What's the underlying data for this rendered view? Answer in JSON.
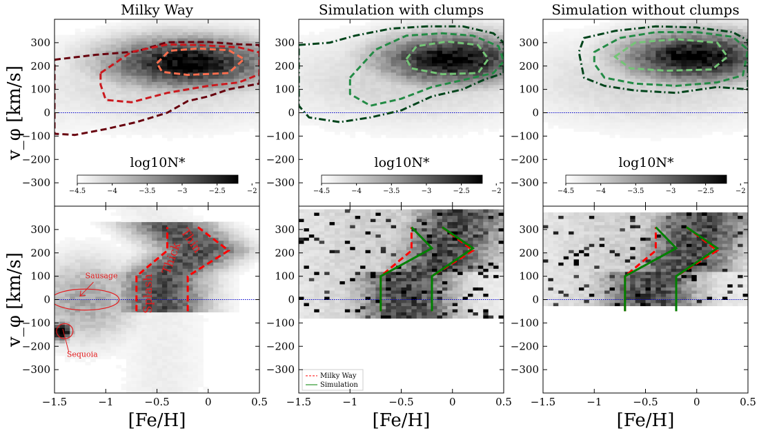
{
  "chart_data": [
    {
      "type": "heatmap",
      "panel": "top-left",
      "title": "Milky Way",
      "xlabel": "",
      "ylabel": "v_φ [km/s]",
      "xlim": [
        -1.5,
        0.5
      ],
      "ylim": [
        -400,
        400
      ],
      "yticks": [
        -300,
        -200,
        -100,
        0,
        100,
        200,
        300
      ],
      "density_peak": {
        "x": -0.2,
        "y": 215
      },
      "hline_y": 0,
      "colorbar": {
        "label": "log10N*",
        "range": [
          -4.5,
          -2.2
        ],
        "ticks": [
          -4.5,
          -4.0,
          -3.5,
          -3.0,
          -2.5,
          -2.0
        ]
      },
      "contours": [
        {
          "name": "outer",
          "color": "#67000d",
          "points": [
            [
              -1.5,
              227
            ],
            [
              -1.1,
              248
            ],
            [
              -0.7,
              262
            ],
            [
              -0.4,
              302
            ],
            [
              0.0,
              303
            ],
            [
              0.3,
              293
            ],
            [
              0.5,
              290
            ],
            [
              0.5,
              125
            ],
            [
              0.2,
              100
            ],
            [
              0.0,
              70
            ],
            [
              -0.2,
              50
            ],
            [
              -0.4,
              0
            ],
            [
              -0.7,
              -40
            ],
            [
              -1.0,
              -70
            ],
            [
              -1.3,
              -95
            ],
            [
              -1.5,
              -90
            ]
          ]
        },
        {
          "name": "middle",
          "color": "#cb181d",
          "points": [
            [
              -1.05,
              170
            ],
            [
              -0.75,
              260
            ],
            [
              -0.4,
              292
            ],
            [
              -0.1,
              290
            ],
            [
              0.3,
              280
            ],
            [
              0.5,
              258
            ],
            [
              0.5,
              165
            ],
            [
              0.3,
              130
            ],
            [
              0.0,
              115
            ],
            [
              -0.4,
              85
            ],
            [
              -0.75,
              45
            ],
            [
              -1.0,
              55
            ],
            [
              -1.05,
              120
            ]
          ]
        },
        {
          "name": "inner",
          "color": "#fc6e4e",
          "points": [
            [
              -0.5,
              212
            ],
            [
              -0.38,
              265
            ],
            [
              -0.1,
              275
            ],
            [
              0.2,
              268
            ],
            [
              0.35,
              230
            ],
            [
              0.2,
              170
            ],
            [
              -0.2,
              162
            ],
            [
              -0.45,
              175
            ],
            [
              -0.5,
              212
            ]
          ]
        }
      ]
    },
    {
      "type": "heatmap",
      "panel": "top-middle",
      "title": "Simulation with clumps",
      "xlim": [
        -1.5,
        0.5
      ],
      "ylim": [
        -400,
        400
      ],
      "yticks": [
        -300,
        -200,
        -100,
        0,
        100,
        200,
        300
      ],
      "density_peak": {
        "x": 0.0,
        "y": 230
      },
      "hline_y": 0,
      "colorbar": {
        "label": "log10N*",
        "range": [
          -4.5,
          -2.2
        ],
        "ticks": [
          -4.5,
          -4.0,
          -3.5,
          -3.0,
          -2.5,
          -2.0
        ]
      },
      "contours": [
        {
          "name": "outer",
          "color": "#00441b",
          "points": [
            [
              -1.5,
              290
            ],
            [
              -1.2,
              300
            ],
            [
              -0.95,
              330
            ],
            [
              -0.6,
              360
            ],
            [
              -0.25,
              370
            ],
            [
              0.1,
              370
            ],
            [
              0.4,
              340
            ],
            [
              0.5,
              300
            ],
            [
              0.5,
              170
            ],
            [
              0.3,
              140
            ],
            [
              0.1,
              100
            ],
            [
              -0.2,
              70
            ],
            [
              -0.5,
              10
            ],
            [
              -0.8,
              -20
            ],
            [
              -1.1,
              -40
            ],
            [
              -1.4,
              -20
            ],
            [
              -1.5,
              30
            ]
          ]
        },
        {
          "name": "middle",
          "color": "#238b45",
          "points": [
            [
              -1.0,
              150
            ],
            [
              -0.75,
              270
            ],
            [
              -0.45,
              330
            ],
            [
              -0.1,
              340
            ],
            [
              0.2,
              330
            ],
            [
              0.45,
              285
            ],
            [
              0.5,
              220
            ],
            [
              0.4,
              170
            ],
            [
              0.1,
              140
            ],
            [
              -0.2,
              110
            ],
            [
              -0.5,
              60
            ],
            [
              -0.8,
              30
            ],
            [
              -1.0,
              80
            ]
          ]
        },
        {
          "name": "inner",
          "color": "#74c476",
          "points": [
            [
              -0.45,
              230
            ],
            [
              -0.35,
              285
            ],
            [
              -0.05,
              305
            ],
            [
              0.25,
              290
            ],
            [
              0.35,
              230
            ],
            [
              0.25,
              170
            ],
            [
              -0.1,
              165
            ],
            [
              -0.4,
              190
            ],
            [
              -0.45,
              230
            ]
          ]
        }
      ]
    },
    {
      "type": "heatmap",
      "panel": "top-right",
      "title": "Simulation without clumps",
      "xlim": [
        -1.5,
        0.5
      ],
      "ylim": [
        -400,
        400
      ],
      "yticks": [
        -300,
        -200,
        -100,
        0,
        100,
        200,
        300
      ],
      "density_peak": {
        "x": 0.0,
        "y": 240
      },
      "hline_y": 0,
      "colorbar": {
        "label": "log10N*",
        "range": [
          -4.5,
          -2.2
        ],
        "ticks": [
          -4.5,
          -4.0,
          -3.5,
          -3.0,
          -2.5,
          -2.0
        ]
      },
      "contours": [
        {
          "name": "outer",
          "color": "#00441b",
          "points": [
            [
              -1.1,
              320
            ],
            [
              -0.8,
              350
            ],
            [
              -0.4,
              370
            ],
            [
              0.0,
              365
            ],
            [
              0.35,
              345
            ],
            [
              0.5,
              310
            ],
            [
              0.5,
              100
            ],
            [
              0.2,
              110
            ],
            [
              -0.2,
              85
            ],
            [
              -0.6,
              95
            ],
            [
              -0.9,
              115
            ],
            [
              -1.1,
              150
            ],
            [
              -1.15,
              260
            ]
          ]
        },
        {
          "name": "middle",
          "color": "#238b45",
          "points": [
            [
              -1.0,
              260
            ],
            [
              -0.75,
              320
            ],
            [
              -0.4,
              345
            ],
            [
              0.0,
              345
            ],
            [
              0.35,
              325
            ],
            [
              0.5,
              270
            ],
            [
              0.45,
              160
            ],
            [
              0.2,
              130
            ],
            [
              -0.2,
              115
            ],
            [
              -0.6,
              125
            ],
            [
              -0.9,
              150
            ],
            [
              -1.0,
              210
            ]
          ]
        },
        {
          "name": "inner",
          "color": "#74c476",
          "points": [
            [
              -0.8,
              240
            ],
            [
              -0.6,
              300
            ],
            [
              -0.2,
              315
            ],
            [
              0.2,
              300
            ],
            [
              0.3,
              240
            ],
            [
              0.15,
              185
            ],
            [
              -0.3,
              180
            ],
            [
              -0.65,
              190
            ],
            [
              -0.8,
              240
            ]
          ]
        }
      ]
    },
    {
      "type": "heatmap",
      "panel": "bottom-left",
      "xlabel": "[Fe/H]",
      "ylabel": "v_φ [km/s]",
      "xlim": [
        -1.5,
        0.5
      ],
      "ylim": [
        -400,
        400
      ],
      "xticks": [
        -1.5,
        -1.0,
        -0.5,
        0.0,
        0.5
      ],
      "yticks": [
        -300,
        -200,
        -100,
        0,
        100,
        200,
        300
      ],
      "hline_y": 0,
      "boundaries": [
        {
          "name": "left",
          "style": "dashed",
          "color": "#ff0000",
          "points": [
            [
              -0.7,
              -50
            ],
            [
              -0.7,
              100
            ],
            [
              -0.4,
              210
            ],
            [
              -0.4,
              310
            ]
          ]
        },
        {
          "name": "right",
          "style": "dashed",
          "color": "#ff0000",
          "points": [
            [
              -0.2,
              -50
            ],
            [
              -0.2,
              100
            ],
            [
              0.2,
              210
            ],
            [
              -0.1,
              310
            ]
          ]
        }
      ],
      "annotations": {
        "sausage": "Sausage",
        "sequoia": "Sequoia",
        "splash": "Splash",
        "thin_disk": "Thin",
        "thick_disk": "Thick"
      },
      "ellipses": [
        {
          "name": "sausage",
          "center": [
            -1.2,
            0
          ],
          "radii": [
            0.33,
            45
          ]
        },
        {
          "name": "sequoia",
          "center": [
            -1.4,
            -135
          ],
          "radii": [
            0.08,
            32
          ]
        }
      ]
    },
    {
      "type": "heatmap",
      "panel": "bottom-middle",
      "xlabel": "[Fe/H]",
      "xlim": [
        -1.5,
        0.5
      ],
      "ylim": [
        -400,
        400
      ],
      "xticks": [
        -1.5,
        -1.0,
        -0.5,
        0.0,
        0.5
      ],
      "yticks": [
        -300,
        -200,
        -100,
        0,
        100,
        200,
        300
      ],
      "hline_y": 0,
      "legend": {
        "position": "lower-left",
        "entries": [
          "Milky Way",
          "Simulation"
        ]
      },
      "boundaries": [
        {
          "name": "mw-left",
          "style": "dashed",
          "color": "#ff0000",
          "points": [
            [
              -0.7,
              -50
            ],
            [
              -0.7,
              100
            ],
            [
              -0.4,
              210
            ],
            [
              -0.4,
              310
            ]
          ]
        },
        {
          "name": "mw-right",
          "style": "dashed",
          "color": "#ff0000",
          "points": [
            [
              -0.2,
              -50
            ],
            [
              -0.2,
              100
            ],
            [
              0.2,
              210
            ],
            [
              -0.1,
              310
            ]
          ]
        },
        {
          "name": "sim-left",
          "style": "solid",
          "color": "#008000",
          "points": [
            [
              -0.7,
              -50
            ],
            [
              -0.7,
              100
            ],
            [
              -0.2,
              220
            ],
            [
              -0.4,
              310
            ]
          ]
        },
        {
          "name": "sim-right",
          "style": "solid",
          "color": "#008000",
          "points": [
            [
              -0.2,
              -50
            ],
            [
              -0.2,
              100
            ],
            [
              0.2,
              220
            ],
            [
              -0.1,
              310
            ]
          ]
        }
      ]
    },
    {
      "type": "heatmap",
      "panel": "bottom-right",
      "xlabel": "[Fe/H]",
      "xlim": [
        -1.5,
        0.5
      ],
      "ylim": [
        -400,
        400
      ],
      "xticks": [
        -1.5,
        -1.0,
        -0.5,
        0.0,
        0.5
      ],
      "yticks": [
        -300,
        -200,
        -100,
        0,
        100,
        200,
        300
      ],
      "hline_y": 0,
      "boundaries": [
        {
          "name": "mw-left",
          "style": "dashed",
          "color": "#ff0000",
          "points": [
            [
              -0.7,
              -50
            ],
            [
              -0.7,
              100
            ],
            [
              -0.4,
              210
            ],
            [
              -0.4,
              310
            ]
          ]
        },
        {
          "name": "mw-right",
          "style": "dashed",
          "color": "#ff0000",
          "points": [
            [
              -0.2,
              -50
            ],
            [
              -0.2,
              100
            ],
            [
              0.2,
              210
            ],
            [
              -0.1,
              310
            ]
          ]
        },
        {
          "name": "sim-left",
          "style": "solid",
          "color": "#008000",
          "points": [
            [
              -0.7,
              -50
            ],
            [
              -0.7,
              100
            ],
            [
              -0.2,
              220
            ],
            [
              -0.4,
              310
            ]
          ]
        },
        {
          "name": "sim-right",
          "style": "solid",
          "color": "#008000",
          "points": [
            [
              -0.2,
              -50
            ],
            [
              -0.2,
              100
            ],
            [
              0.2,
              220
            ],
            [
              -0.1,
              310
            ]
          ]
        }
      ]
    }
  ]
}
